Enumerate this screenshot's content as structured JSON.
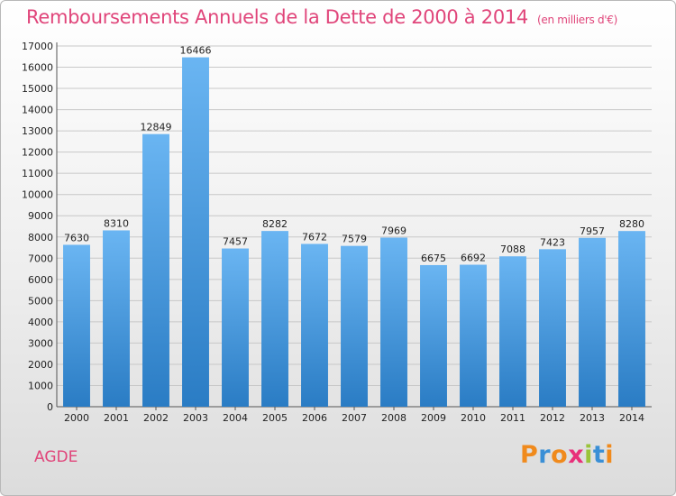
{
  "title": "Remboursements Annuels de la Dette de 2000 à 2014",
  "subtitle": "(en milliers d'€)",
  "city": "AGDE",
  "logo": {
    "letters": [
      "P",
      "r",
      "o",
      "x",
      "i",
      "t",
      "i"
    ],
    "colors": [
      "#f08a1c",
      "#3a8fd6",
      "#f08a1c",
      "#e8307a",
      "#9ac43a",
      "#3a8fd6",
      "#f08a1c"
    ]
  },
  "colors": {
    "bar_light": "#6ab5f2",
    "bar_dark": "#2a7cc4",
    "title": "#e0457a"
  },
  "chart_data": {
    "type": "bar",
    "title": "Remboursements Annuels de la Dette de 2000 à 2014",
    "subtitle": "(en milliers d'€)",
    "categories": [
      "2000",
      "2001",
      "2002",
      "2003",
      "2004",
      "2005",
      "2006",
      "2007",
      "2008",
      "2009",
      "2010",
      "2011",
      "2012",
      "2013",
      "2014"
    ],
    "values": [
      7630,
      8310,
      12849,
      16466,
      7457,
      8282,
      7672,
      7579,
      7969,
      6675,
      6692,
      7088,
      7423,
      7957,
      8280
    ],
    "yticks": [
      0,
      1000,
      2000,
      3000,
      4000,
      5000,
      6000,
      7000,
      8000,
      9000,
      10000,
      11000,
      12000,
      13000,
      14000,
      15000,
      16000,
      17000
    ],
    "ylim": [
      0,
      17000
    ],
    "xlabel": "",
    "ylabel": "",
    "grid": true,
    "legend": "none"
  }
}
